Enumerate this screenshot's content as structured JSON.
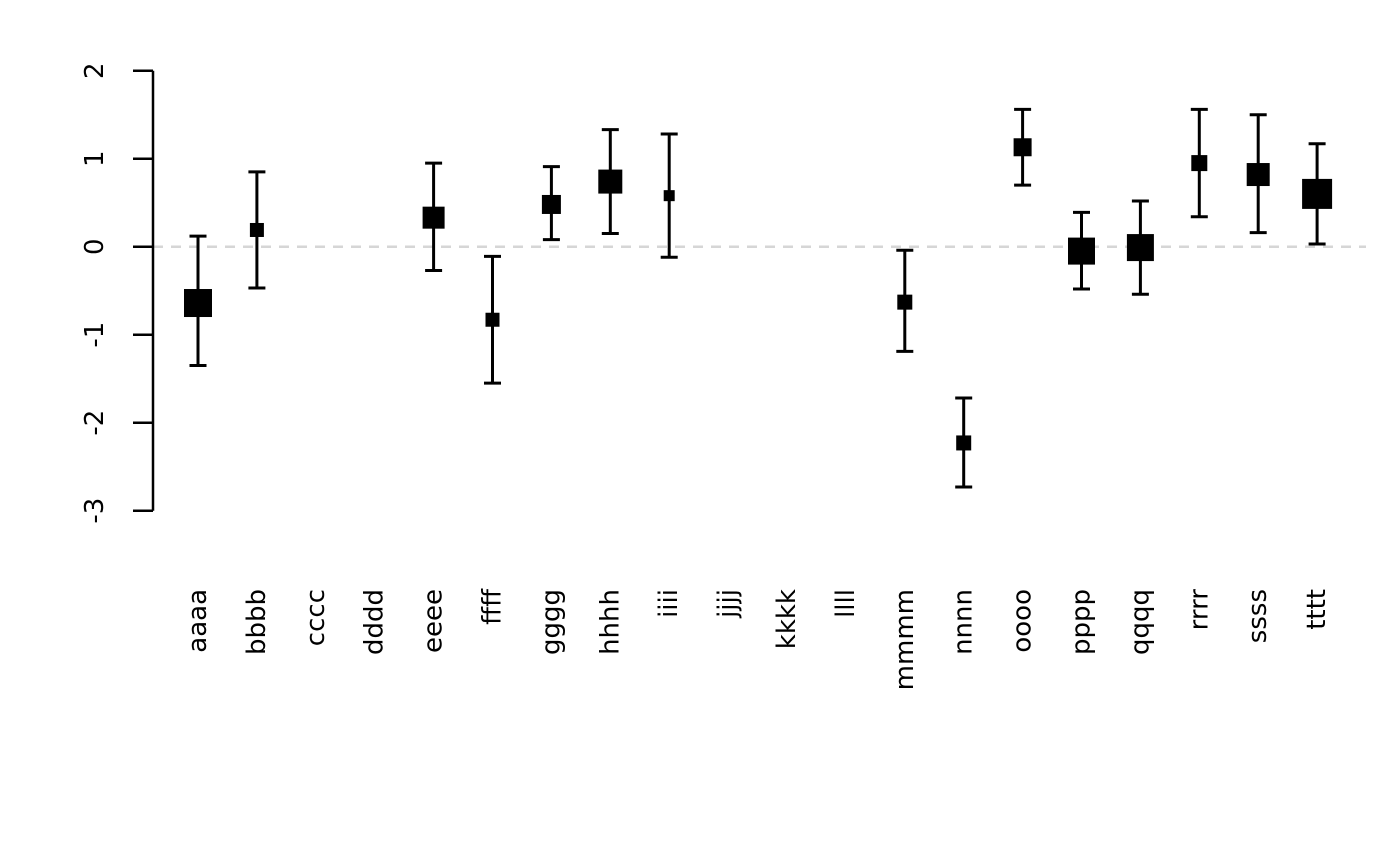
{
  "chart_data": {
    "type": "scatter",
    "subtype": "forest-plot-point-estimates-with-error-bars",
    "title": "",
    "xlabel": "",
    "ylabel": "",
    "categories": [
      "aaaa",
      "bbbb",
      "cccc",
      "dddd",
      "eeee",
      "ffff",
      "gggg",
      "hhhh",
      "iiii",
      "jjjj",
      "kkkk",
      "llll",
      "mmmm",
      "nnnn",
      "oooo",
      "pppp",
      "qqqq",
      "rrrr",
      "ssss",
      "tttt"
    ],
    "y_ticks": [
      2,
      1,
      0,
      -1,
      -2,
      -3
    ],
    "y_tick_labels": [
      "2",
      "1",
      "0",
      "-1",
      "-2",
      "-3"
    ],
    "ylim": [
      -3.3,
      2.3
    ],
    "grid": "off",
    "legend": "none",
    "reference_line": {
      "y": 0,
      "style": "dashed",
      "color": "#d6d6d6"
    },
    "marker": {
      "shape": "square",
      "color": "#000000",
      "size_meaning": "weight"
    },
    "points": [
      {
        "category": "aaaa",
        "estimate": -0.64,
        "lower": -1.35,
        "upper": 0.12,
        "marker_size_px": 28
      },
      {
        "category": "bbbb",
        "estimate": 0.19,
        "lower": -0.47,
        "upper": 0.85,
        "marker_size_px": 14
      },
      {
        "category": "cccc",
        "estimate": null,
        "lower": null,
        "upper": null,
        "marker_size_px": null
      },
      {
        "category": "dddd",
        "estimate": null,
        "lower": null,
        "upper": null,
        "marker_size_px": null
      },
      {
        "category": "eeee",
        "estimate": 0.33,
        "lower": -0.27,
        "upper": 0.95,
        "marker_size_px": 22
      },
      {
        "category": "ffff",
        "estimate": -0.83,
        "lower": -1.55,
        "upper": -0.11,
        "marker_size_px": 14
      },
      {
        "category": "gggg",
        "estimate": 0.48,
        "lower": 0.08,
        "upper": 0.91,
        "marker_size_px": 19
      },
      {
        "category": "hhhh",
        "estimate": 0.74,
        "lower": 0.15,
        "upper": 1.33,
        "marker_size_px": 24
      },
      {
        "category": "iiii",
        "estimate": 0.58,
        "lower": -0.12,
        "upper": 1.28,
        "marker_size_px": 11
      },
      {
        "category": "jjjj",
        "estimate": null,
        "lower": null,
        "upper": null,
        "marker_size_px": null
      },
      {
        "category": "kkkk",
        "estimate": null,
        "lower": null,
        "upper": null,
        "marker_size_px": null
      },
      {
        "category": "llll",
        "estimate": null,
        "lower": null,
        "upper": null,
        "marker_size_px": null
      },
      {
        "category": "mmmm",
        "estimate": -0.63,
        "lower": -1.19,
        "upper": -0.04,
        "marker_size_px": 15
      },
      {
        "category": "nnnn",
        "estimate": -2.23,
        "lower": -2.73,
        "upper": -1.72,
        "marker_size_px": 15
      },
      {
        "category": "oooo",
        "estimate": 1.13,
        "lower": 0.7,
        "upper": 1.56,
        "marker_size_px": 18
      },
      {
        "category": "pppp",
        "estimate": -0.05,
        "lower": -0.48,
        "upper": 0.39,
        "marker_size_px": 27
      },
      {
        "category": "qqqq",
        "estimate": -0.01,
        "lower": -0.54,
        "upper": 0.52,
        "marker_size_px": 27
      },
      {
        "category": "rrrr",
        "estimate": 0.95,
        "lower": 0.34,
        "upper": 1.56,
        "marker_size_px": 16
      },
      {
        "category": "ssss",
        "estimate": 0.82,
        "lower": 0.16,
        "upper": 1.5,
        "marker_size_px": 23
      },
      {
        "category": "tttt",
        "estimate": 0.6,
        "lower": 0.03,
        "upper": 1.17,
        "marker_size_px": 30
      }
    ]
  },
  "colors": {
    "background": "#ffffff",
    "axis": "#000000",
    "marker": "#000000",
    "error_bar": "#000000",
    "reference_line": "#d6d6d6",
    "text": "#000000"
  }
}
